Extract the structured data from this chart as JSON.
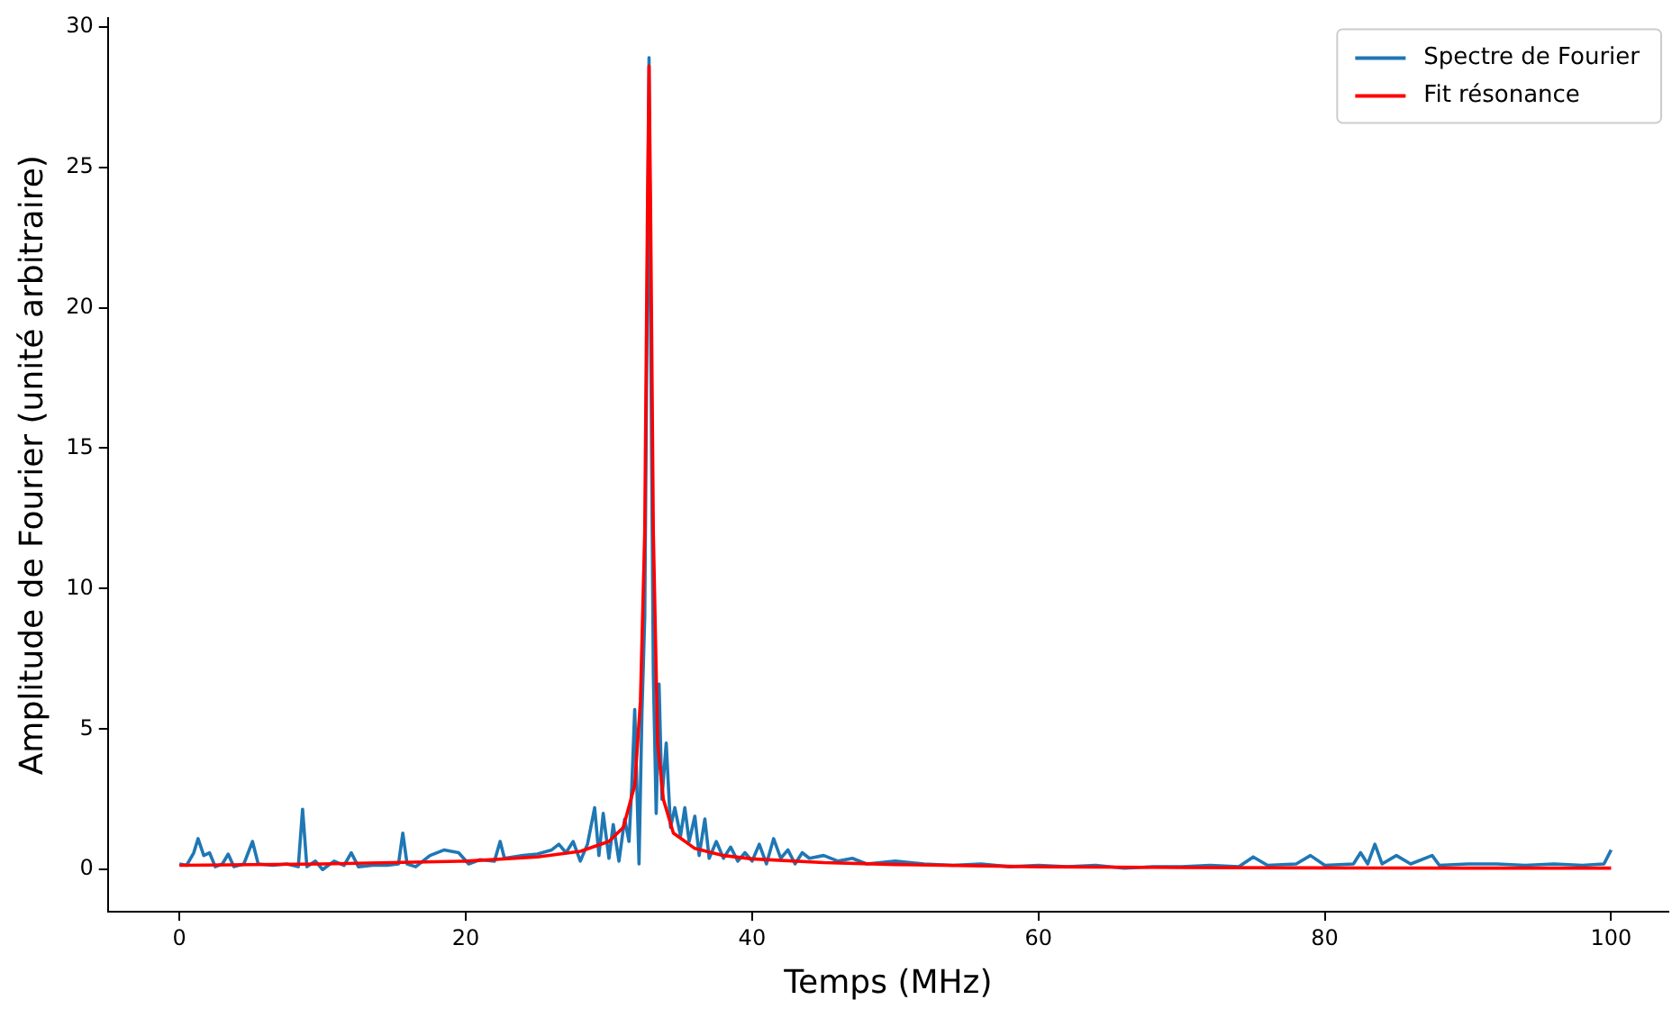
{
  "chart_data": {
    "type": "line",
    "xlabel": "Temps (MHz)",
    "ylabel": "Amplitude de Fourier (unité arbitraire)",
    "xlim": [
      -5,
      104
    ],
    "ylim": [
      -1.5,
      30.3
    ],
    "xticks": [
      0,
      20,
      40,
      60,
      80,
      100
    ],
    "yticks": [
      0,
      5,
      10,
      15,
      20,
      25,
      30
    ],
    "grid": false,
    "legend": "top right",
    "marker": "none",
    "line_style": "solid",
    "series": [
      {
        "name": "Spectre de Fourier",
        "color": "#1f77b4",
        "x": [
          0,
          0.5,
          1,
          1.3,
          1.7,
          2.1,
          2.5,
          3,
          3.4,
          3.8,
          4.5,
          5.1,
          5.5,
          6.5,
          7.5,
          8.3,
          8.6,
          8.9,
          9.5,
          10,
          10.8,
          11.5,
          12,
          12.5,
          13.5,
          14.5,
          15.3,
          15.6,
          15.9,
          16.5,
          17.5,
          18.5,
          19.5,
          20.2,
          21,
          22,
          22.4,
          22.7,
          24,
          25,
          26,
          26.5,
          27,
          27.5,
          28,
          28.5,
          29,
          29.3,
          29.6,
          30,
          30.3,
          30.7,
          31.1,
          31.4,
          31.6,
          31.8,
          32.1,
          32.3,
          32.5,
          32.7,
          32.8,
          32.9,
          33.1,
          33.3,
          33.5,
          33.7,
          34,
          34.3,
          34.6,
          35,
          35.3,
          35.6,
          36,
          36.3,
          36.7,
          37,
          37.5,
          38,
          38.5,
          39,
          39.5,
          40,
          40.5,
          41,
          41.5,
          42,
          42.5,
          43,
          43.5,
          44,
          45,
          46,
          47,
          48,
          50,
          52,
          54,
          56,
          58,
          60,
          62,
          64,
          66,
          68,
          70,
          72,
          74,
          75,
          76,
          78,
          79,
          80,
          82,
          82.5,
          83,
          83.5,
          84,
          85,
          86,
          87.5,
          88,
          90,
          92,
          94,
          96,
          98,
          99.5,
          100
        ],
        "values": [
          0.2,
          0.15,
          0.6,
          1.1,
          0.5,
          0.6,
          0.1,
          0.2,
          0.55,
          0.1,
          0.2,
          1.0,
          0.2,
          0.15,
          0.2,
          0.1,
          2.15,
          0.1,
          0.3,
          0.0,
          0.3,
          0.15,
          0.6,
          0.1,
          0.15,
          0.15,
          0.2,
          1.3,
          0.2,
          0.1,
          0.5,
          0.7,
          0.6,
          0.2,
          0.35,
          0.3,
          1.0,
          0.4,
          0.5,
          0.55,
          0.7,
          0.9,
          0.6,
          1.0,
          0.3,
          0.9,
          2.2,
          0.5,
          2.0,
          0.4,
          1.6,
          0.3,
          1.8,
          1.0,
          3.0,
          5.7,
          0.2,
          5.5,
          9,
          22,
          28.9,
          20,
          7,
          2.0,
          6.6,
          2.5,
          4.5,
          1.5,
          2.2,
          1.2,
          2.2,
          1.0,
          1.9,
          0.5,
          1.8,
          0.4,
          1.0,
          0.4,
          0.8,
          0.3,
          0.6,
          0.3,
          0.9,
          0.2,
          1.1,
          0.4,
          0.7,
          0.2,
          0.6,
          0.4,
          0.5,
          0.3,
          0.4,
          0.2,
          0.3,
          0.2,
          0.15,
          0.2,
          0.1,
          0.15,
          0.1,
          0.15,
          0.05,
          0.1,
          0.1,
          0.15,
          0.1,
          0.45,
          0.15,
          0.2,
          0.5,
          0.15,
          0.2,
          0.6,
          0.2,
          0.9,
          0.2,
          0.5,
          0.2,
          0.5,
          0.15,
          0.2,
          0.2,
          0.15,
          0.2,
          0.15,
          0.2,
          0.7
        ]
      },
      {
        "name": "Fit résonance",
        "color": "#ff0000",
        "x": [
          0,
          10,
          20,
          25,
          28,
          30,
          31,
          31.8,
          32.2,
          32.5,
          32.7,
          32.8,
          32.9,
          33.1,
          33.4,
          33.8,
          34.5,
          36,
          38,
          40,
          45,
          50,
          60,
          70,
          80,
          90,
          100
        ],
        "values": [
          0.15,
          0.2,
          0.3,
          0.45,
          0.65,
          1.0,
          1.5,
          3.0,
          6.0,
          12,
          24,
          28.6,
          24,
          12,
          4.5,
          2.5,
          1.3,
          0.75,
          0.5,
          0.38,
          0.25,
          0.18,
          0.1,
          0.07,
          0.06,
          0.05,
          0.05
        ]
      }
    ]
  }
}
